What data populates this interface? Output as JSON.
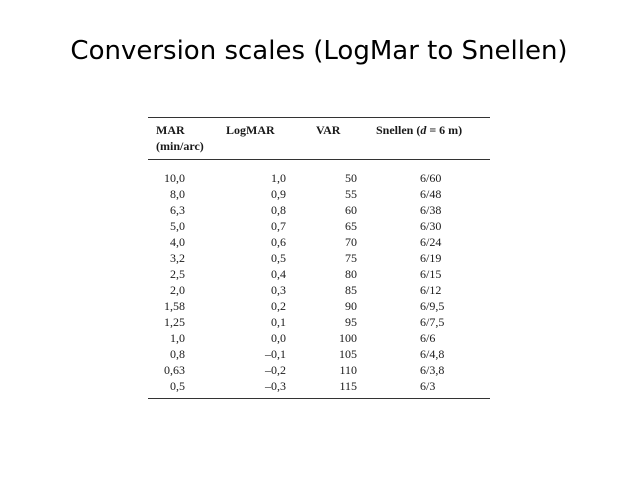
{
  "slide": {
    "title": "Conversion scales (LogMar to Snellen)"
  },
  "table": {
    "headers": {
      "mar_line1": "MAR",
      "mar_line2": "(min/arc)",
      "logmar": "LogMAR",
      "var": "VAR",
      "snellen_prefix": "Snellen (",
      "snellen_var": "d",
      "snellen_suffix": " = 6 m)"
    },
    "rows": [
      {
        "mar": "10,0",
        "logmar": "1,0",
        "var": "50",
        "snellen": "6/60"
      },
      {
        "mar": "8,0",
        "logmar": "0,9",
        "var": "55",
        "snellen": "6/48"
      },
      {
        "mar": "6,3",
        "logmar": "0,8",
        "var": "60",
        "snellen": "6/38"
      },
      {
        "mar": "5,0",
        "logmar": "0,7",
        "var": "65",
        "snellen": "6/30"
      },
      {
        "mar": "4,0",
        "logmar": "0,6",
        "var": "70",
        "snellen": "6/24"
      },
      {
        "mar": "3,2",
        "logmar": "0,5",
        "var": "75",
        "snellen": "6/19"
      },
      {
        "mar": "2,5",
        "logmar": "0,4",
        "var": "80",
        "snellen": "6/15"
      },
      {
        "mar": "2,0",
        "logmar": "0,3",
        "var": "85",
        "snellen": "6/12"
      },
      {
        "mar": "1,58",
        "logmar": "0,2",
        "var": "90",
        "snellen": "6/9,5"
      },
      {
        "mar": "1,25",
        "logmar": "0,1",
        "var": "95",
        "snellen": "6/7,5"
      },
      {
        "mar": "1,0",
        "logmar": "0,0",
        "var": "100",
        "snellen": "6/6"
      },
      {
        "mar": "0,8",
        "logmar": "–0,1",
        "var": "105",
        "snellen": "6/4,8"
      },
      {
        "mar": "0,63",
        "logmar": "–0,2",
        "var": "110",
        "snellen": "6/3,8"
      },
      {
        "mar": "0,5",
        "logmar": "–0,3",
        "var": "115",
        "snellen": "6/3"
      }
    ]
  }
}
